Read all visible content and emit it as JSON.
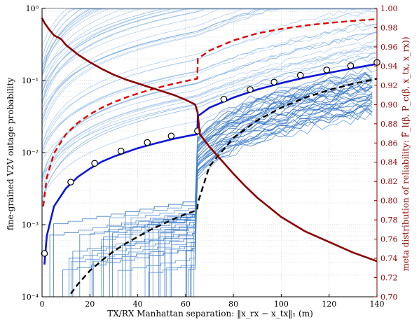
{
  "chart_data": {
    "type": "line",
    "title": "",
    "xlabel": "TX/RX Manhattan separation: ‖x_rx − x_tx‖₁ (m)",
    "ylabel_left": "fine-grained V2V outage probability",
    "ylabel_right": "meta distribution of reliability: F̄_l(β, P_c(β, x_tx, x_rx))",
    "xlim": [
      0,
      140
    ],
    "ylim_left": [
      0.0001,
      1
    ],
    "yscale_left": "log",
    "ylim_right": [
      0.7,
      1.0
    ],
    "grid": true,
    "x_ticks": [
      "0",
      "20",
      "40",
      "60",
      "80",
      "100",
      "120",
      "140"
    ],
    "left_ticks": [
      "10⁻⁴",
      "10⁻³",
      "10⁻²",
      "10⁻¹",
      "10⁰"
    ],
    "right_ticks": [
      "0.70",
      "0.72",
      "0.74",
      "0.76",
      "0.78",
      "0.80",
      "0.82",
      "0.84",
      "0.86",
      "0.88",
      "0.90",
      "0.92",
      "0.94",
      "0.96",
      "0.98",
      "1.00"
    ],
    "series": [
      {
        "style": "solid-blue-thick",
        "axis": "left",
        "x": [
          1,
          2,
          5,
          10,
          15,
          20,
          25,
          30,
          35,
          40,
          45,
          50,
          55,
          60,
          64.9,
          65.1,
          70,
          80,
          90,
          100,
          110,
          120,
          130,
          140
        ],
        "y": [
          0.00028,
          0.0007,
          0.0018,
          0.0032,
          0.0046,
          0.006,
          0.0075,
          0.0088,
          0.0101,
          0.0115,
          0.0128,
          0.0141,
          0.0155,
          0.0168,
          0.018,
          0.032,
          0.042,
          0.058,
          0.075,
          0.092,
          0.11,
          0.128,
          0.148,
          0.17
        ]
      },
      {
        "style": "circle-markers",
        "axis": "left",
        "x": [
          1,
          12,
          22,
          33,
          44,
          54,
          65,
          76,
          87,
          97,
          108,
          119,
          129,
          140
        ],
        "y": [
          0.0004,
          0.0039,
          0.0071,
          0.0105,
          0.0138,
          0.017,
          0.02,
          0.055,
          0.075,
          0.095,
          0.118,
          0.14,
          0.16,
          0.178
        ]
      },
      {
        "style": "dashed-red",
        "axis": "left",
        "x": [
          0.5,
          2,
          5,
          10,
          15,
          20,
          25,
          30,
          35,
          40,
          45,
          50,
          55,
          60,
          64.9,
          65.1,
          70,
          80,
          90,
          100,
          110,
          120,
          130,
          140
        ],
        "y": [
          0.0018,
          0.0045,
          0.0098,
          0.018,
          0.026,
          0.034,
          0.042,
          0.05,
          0.058,
          0.066,
          0.074,
          0.082,
          0.09,
          0.098,
          0.106,
          0.2,
          0.26,
          0.36,
          0.45,
          0.52,
          0.58,
          0.63,
          0.67,
          0.71
        ]
      },
      {
        "style": "dashed-black",
        "axis": "left",
        "x": [
          12,
          15,
          20,
          25,
          30,
          35,
          40,
          45,
          50,
          55,
          60,
          64.9,
          65.1,
          70,
          80,
          90,
          100,
          110,
          120,
          130,
          140
        ],
        "y": [
          0.00011,
          0.00015,
          0.00023,
          0.00032,
          0.00043,
          0.00055,
          0.00068,
          0.00084,
          0.001,
          0.0012,
          0.0014,
          0.0016,
          0.002,
          0.0065,
          0.016,
          0.028,
          0.042,
          0.058,
          0.074,
          0.09,
          0.106
        ]
      },
      {
        "style": "solid-darkred-thick",
        "axis": "right",
        "x": [
          0,
          1,
          3,
          5,
          8,
          10,
          15,
          20,
          25,
          30,
          35,
          40,
          45,
          50,
          55,
          60,
          64,
          65,
          66,
          70,
          75,
          80,
          85,
          90,
          95,
          100,
          110,
          120,
          130,
          140
        ],
        "y": [
          0.99,
          0.985,
          0.978,
          0.972,
          0.968,
          0.962,
          0.952,
          0.944,
          0.937,
          0.931,
          0.926,
          0.922,
          0.918,
          0.914,
          0.91,
          0.905,
          0.9,
          0.892,
          0.869,
          0.856,
          0.842,
          0.828,
          0.815,
          0.803,
          0.793,
          0.783,
          0.768,
          0.757,
          0.746,
          0.737
        ]
      }
    ]
  }
}
